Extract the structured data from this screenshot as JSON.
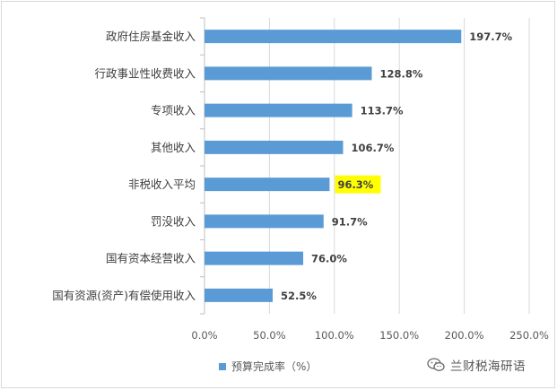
{
  "chart_data": {
    "type": "bar",
    "orientation": "horizontal",
    "categories": [
      "政府住房基金收入",
      "行政事业性收费收入",
      "专项收入",
      "其他收入",
      "非税收入平均",
      "罚没收入",
      "国有资本经营收入",
      "国有资源(资产)有偿使用收入"
    ],
    "series": [
      {
        "name": "预算完成率（%）",
        "values": [
          197.7,
          128.8,
          113.7,
          106.7,
          96.3,
          91.7,
          76.0,
          52.5
        ],
        "data_labels": [
          "197.7%",
          "128.8%",
          "113.7%",
          "106.7%",
          "96.3%",
          "91.7%",
          "76.0%",
          "52.5%"
        ]
      }
    ],
    "highlighted_category": "非税收入平均",
    "xlim": [
      0,
      250
    ],
    "x_ticks": [
      0,
      50,
      100,
      150,
      200,
      250
    ],
    "x_tick_labels": [
      "0.0%",
      "50.0%",
      "100.0%",
      "150.0%",
      "200.0%",
      "250.0%"
    ],
    "grid": "vertical",
    "legend_position": "bottom",
    "bar_color": "#5b9bd5",
    "highlight_color": "#ffff00",
    "grid_color": "#d9d9d9"
  },
  "watermark": {
    "icon": "wechat-icon",
    "text": "兰财税海研语"
  }
}
